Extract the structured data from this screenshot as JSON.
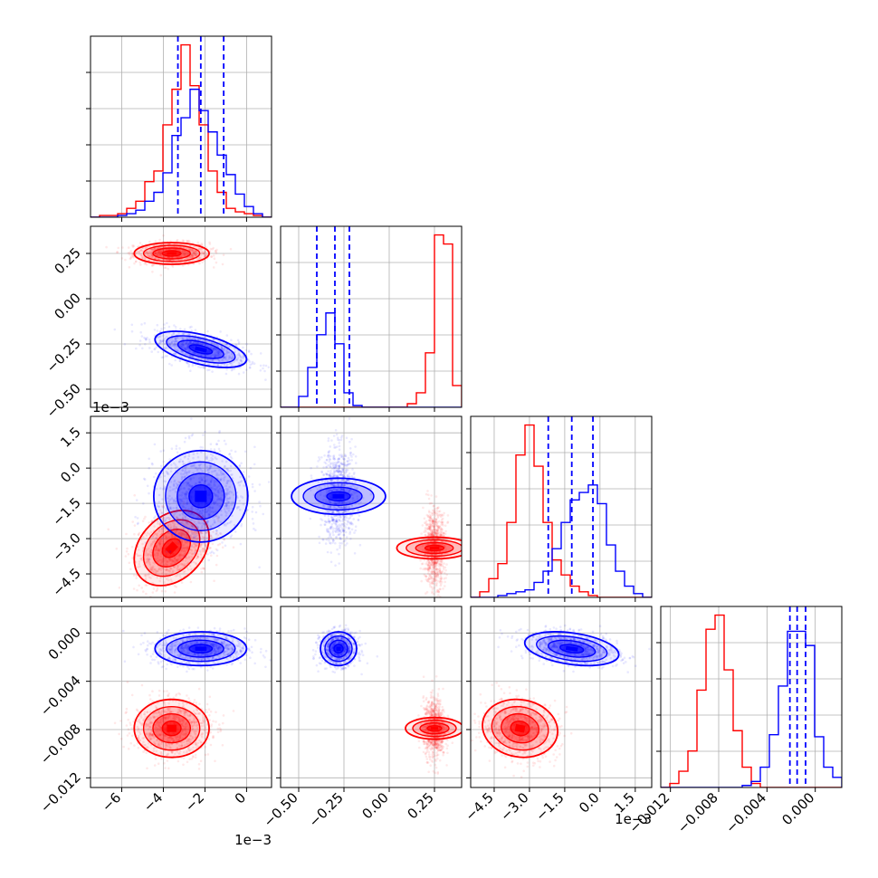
{
  "chart_data": {
    "type": "corner",
    "title": "",
    "parameters": 4,
    "colors": {
      "red": "#ff0000",
      "blue": "#0000ff",
      "grid": "#b0b0b0"
    },
    "axis_ranges": [
      [
        -0.0075,
        0.0012
      ],
      [
        -0.6,
        0.4
      ],
      [
        -0.0055,
        0.0022
      ],
      [
        -0.0128,
        0.0022
      ]
    ],
    "offset_texts": [
      "1e−3",
      "1e−3",
      "1e−3"
    ],
    "bottom_ticks": [
      {
        "values": [
          -0.006,
          -0.004,
          -0.002,
          0.0
        ],
        "labels": [
          "−6",
          "−4",
          "−2",
          "0"
        ]
      },
      {
        "values": [
          -0.5,
          -0.25,
          0.0,
          0.25
        ],
        "labels": [
          "−0.50",
          "−0.25",
          "0.00",
          "0.25"
        ]
      },
      {
        "values": [
          -0.0045,
          -0.003,
          -0.0015,
          0.0,
          0.0015
        ],
        "labels": [
          "−4.5",
          "−3.0",
          "−1.5",
          "0.0",
          "1.5"
        ]
      },
      {
        "values": [
          -0.012,
          -0.008,
          -0.004,
          0.0
        ],
        "labels": [
          "−0.012",
          "−0.008",
          "−0.004",
          "0.000"
        ]
      }
    ],
    "left_ticks": [
      null,
      {
        "values": [
          0.25,
          0.0,
          -0.25,
          -0.5
        ],
        "labels": [
          "0.25",
          "0.00",
          "−0.25",
          "−0.50"
        ]
      },
      {
        "values": [
          0.0015,
          0.0,
          -0.0015,
          -0.003,
          -0.0045
        ],
        "labels": [
          "1.5",
          "0.0",
          "−1.5",
          "−3.0",
          "−4.5"
        ]
      },
      {
        "values": [
          0.0,
          -0.004,
          -0.008,
          -0.012
        ],
        "labels": [
          "0.000",
          "−0.004",
          "−0.008",
          "−0.012"
        ]
      }
    ],
    "series": [
      {
        "color": "red",
        "means": [
          -0.0036,
          0.25,
          -0.0034,
          -0.0079
        ],
        "stds": [
          0.0009,
          0.03,
          0.0008,
          0.0012
        ],
        "correlations": {
          "2-0": 0.3,
          "3-2": -0.1,
          "1-0": 0.0,
          "2-1": 0.0,
          "3-0": 0.0,
          "3-1": 0.0
        }
      },
      {
        "color": "blue",
        "means": [
          -0.0022,
          -0.28,
          -0.0012,
          -0.0013
        ],
        "stds": [
          0.0011,
          0.05,
          0.001,
          0.0007
        ],
        "correlations": {
          "1-0": -0.55,
          "2-0": 0.0,
          "2-1": 0.0,
          "3-2": -0.35,
          "3-0": 0.0,
          "3-1": 0.0
        }
      }
    ],
    "histograms": [
      {
        "bin_range": [
          -0.0075,
          0.0012
        ],
        "red": [
          0,
          1,
          1,
          2,
          5,
          9,
          20,
          26,
          52,
          72,
          97,
          74,
          52,
          26,
          14,
          5,
          3,
          2,
          1,
          0
        ],
        "blue": [
          0,
          0,
          0,
          1,
          2,
          4,
          9,
          14,
          25,
          46,
          56,
          72,
          60,
          48,
          35,
          24,
          13,
          6,
          2,
          0
        ]
      },
      {
        "bin_range": [
          -0.6,
          0.4
        ],
        "red": [
          0,
          0,
          0,
          0,
          0,
          0,
          0,
          0,
          0,
          0,
          0,
          0,
          0,
          0,
          2,
          8,
          30,
          95,
          90,
          12
        ],
        "blue": [
          0,
          0,
          6,
          22,
          40,
          52,
          35,
          8,
          1,
          0,
          0,
          0,
          0,
          0,
          0,
          0,
          0,
          0,
          0,
          0
        ]
      },
      {
        "bin_range": [
          -0.0055,
          0.0022
        ],
        "red": [
          0,
          3,
          10,
          18,
          40,
          76,
          92,
          70,
          40,
          20,
          12,
          6,
          3,
          1,
          0,
          0,
          0,
          0,
          0,
          0
        ],
        "blue": [
          0,
          0,
          0,
          1,
          2,
          3,
          4,
          8,
          14,
          26,
          40,
          52,
          56,
          60,
          50,
          28,
          14,
          6,
          2,
          0
        ]
      },
      {
        "bin_range": [
          -0.0128,
          0.0022
        ],
        "red": [
          0,
          2,
          8,
          18,
          48,
          78,
          85,
          58,
          28,
          10,
          2,
          0,
          0,
          0,
          0,
          0,
          0,
          0,
          0,
          0
        ],
        "blue": [
          0,
          0,
          0,
          0,
          0,
          0,
          0,
          0,
          0,
          1,
          3,
          10,
          26,
          50,
          77,
          77,
          70,
          25,
          10,
          5
        ]
      }
    ],
    "quantiles_blue": [
      [
        -0.0033,
        -0.0022,
        -0.0011
      ],
      [
        -0.4,
        -0.3,
        -0.22
      ],
      [
        -0.0022,
        -0.0012,
        -0.0003
      ],
      [
        -0.0021,
        -0.0015,
        -0.0008
      ]
    ],
    "grid": true,
    "legend": "none"
  }
}
